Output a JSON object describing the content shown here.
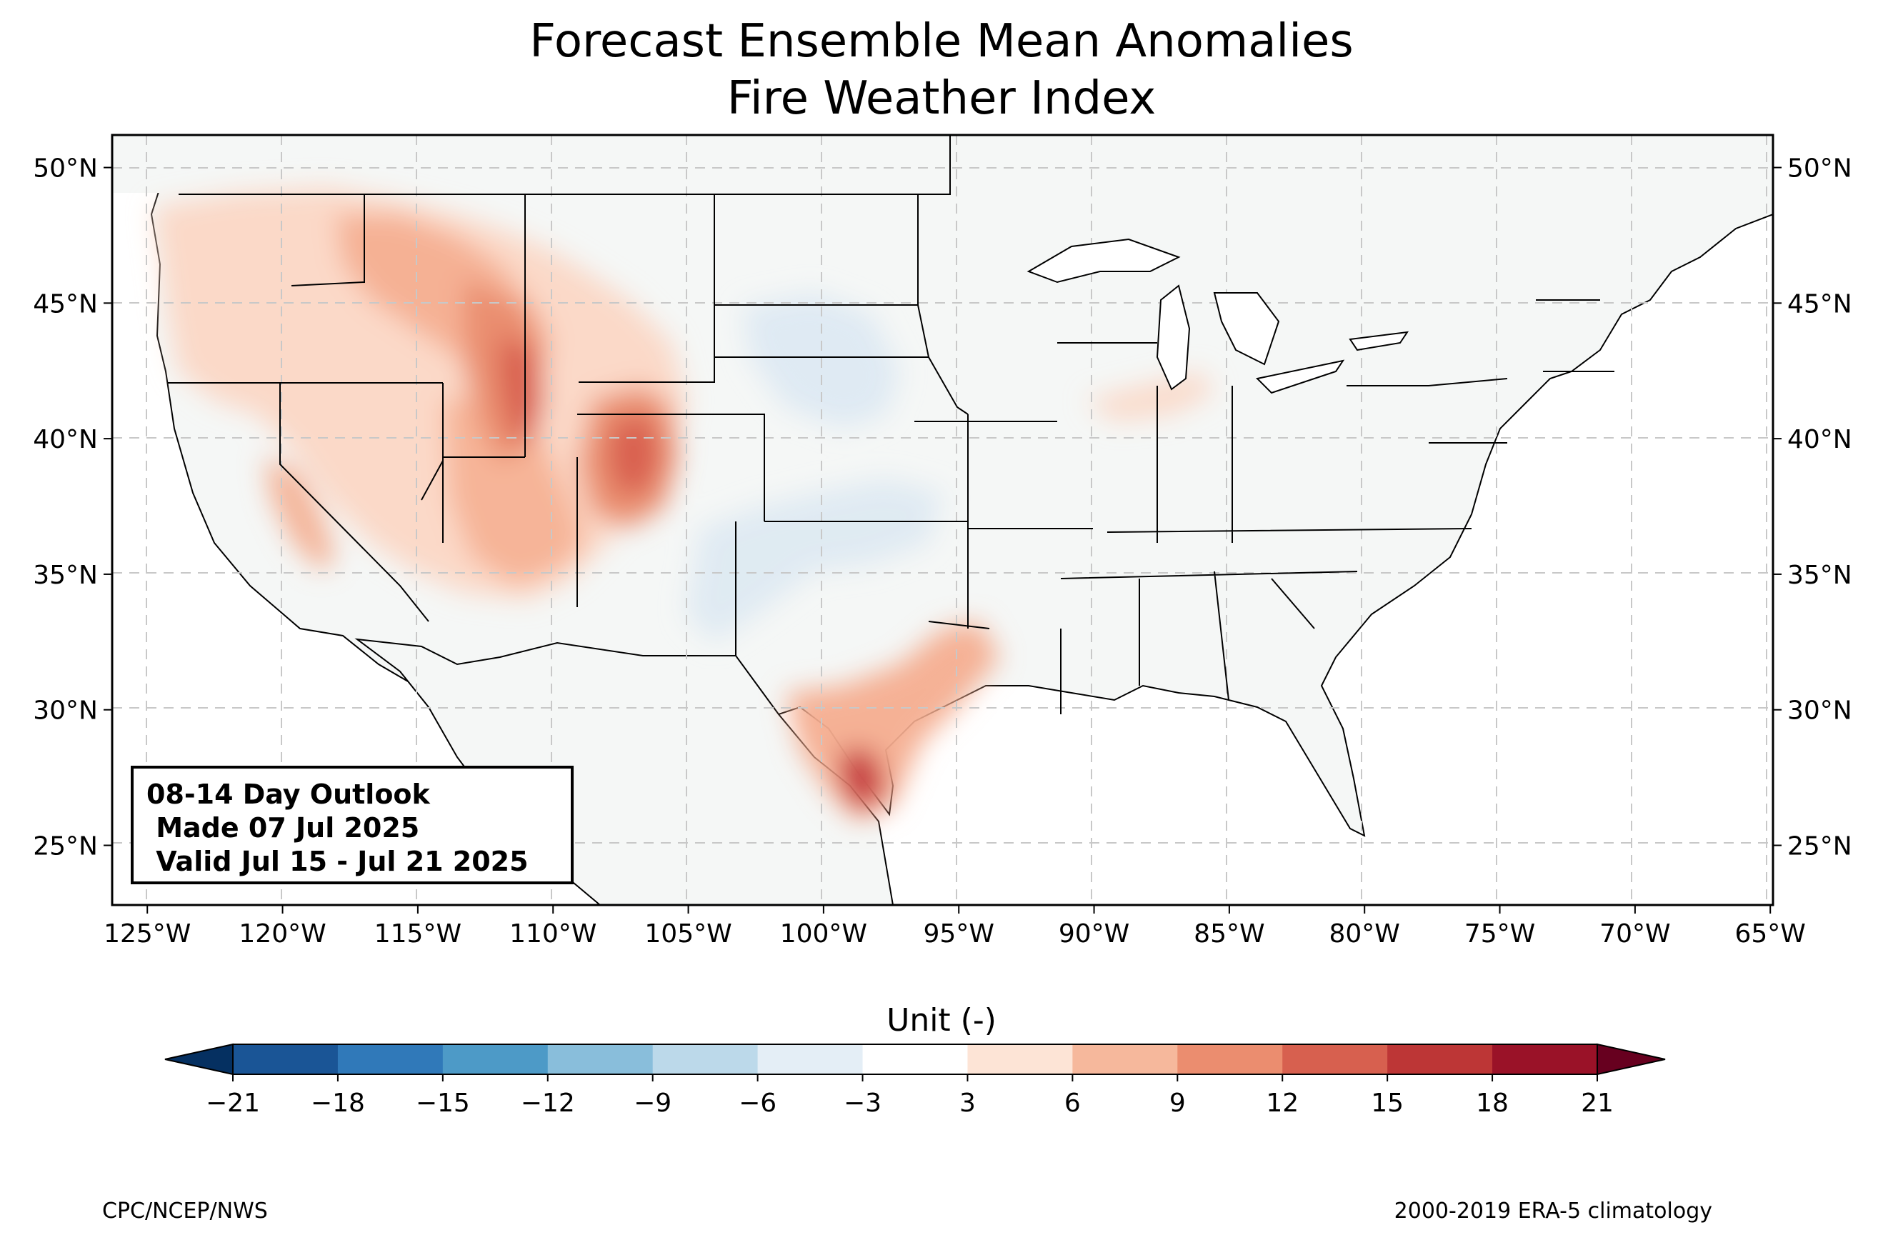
{
  "title": {
    "line1": "Forecast Ensemble Mean Anomalies",
    "line2": "Fire Weather Index"
  },
  "map": {
    "lon_range": [
      -126.3,
      -64.9
    ],
    "lat_range": [
      22.8,
      51.2
    ],
    "lon_ticks": [
      "125°W",
      "120°W",
      "115°W",
      "110°W",
      "105°W",
      "100°W",
      "95°W",
      "90°W",
      "85°W",
      "80°W",
      "75°W",
      "70°W",
      "65°W"
    ],
    "lon_values": [
      -125,
      -120,
      -115,
      -110,
      -105,
      -100,
      -95,
      -90,
      -85,
      -80,
      -75,
      -70,
      -65
    ],
    "lat_ticks": [
      "25°N",
      "30°N",
      "35°N",
      "40°N",
      "45°N",
      "50°N"
    ],
    "lat_values": [
      25,
      30,
      35,
      40,
      45,
      50
    ],
    "gridlines": true,
    "land_color": "#f5f7f6",
    "anomaly_regions": [
      {
        "name": "pacific-northwest",
        "category": "3 to 6",
        "color": "#fbd7c5"
      },
      {
        "name": "idaho-montana",
        "category": "9 to 12",
        "color": "#e98c6d"
      },
      {
        "name": "wyoming-utah",
        "category": "12 to 15",
        "color": "#d9604f"
      },
      {
        "name": "colorado",
        "category": "12 to 15",
        "color": "#d9604f"
      },
      {
        "name": "california",
        "category": "6 to 9",
        "color": "#f4ad8f"
      },
      {
        "name": "south-texas",
        "category": "15 to 18",
        "color": "#c6383e"
      },
      {
        "name": "great-plains",
        "category": "-6 to -3",
        "color": "#dde9f2"
      }
    ]
  },
  "info_box": {
    "line1": "08-14 Day Outlook",
    "line2": " Made 07 Jul 2025",
    "line3": " Valid Jul 15 - Jul 21 2025"
  },
  "colorbar": {
    "label": "Unit (-)",
    "ticks": [
      "−21",
      "−18",
      "−15",
      "−12",
      "−9",
      "−6",
      "−3",
      "3",
      "6",
      "9",
      "12",
      "15",
      "18",
      "21"
    ],
    "colors": [
      "#053061",
      "#1a5596",
      "#3079b9",
      "#4d9ac7",
      "#89bedb",
      "#bcd9ea",
      "#e4eef6",
      "#ffffff",
      "#fde4d6",
      "#f6b89c",
      "#eb8d6f",
      "#d7604f",
      "#bd3636",
      "#9a1228",
      "#67001f"
    ],
    "extend": "both"
  },
  "footer": {
    "left": "CPC/NCEP/NWS",
    "right": "2000-2019 ERA-5 climatology"
  }
}
